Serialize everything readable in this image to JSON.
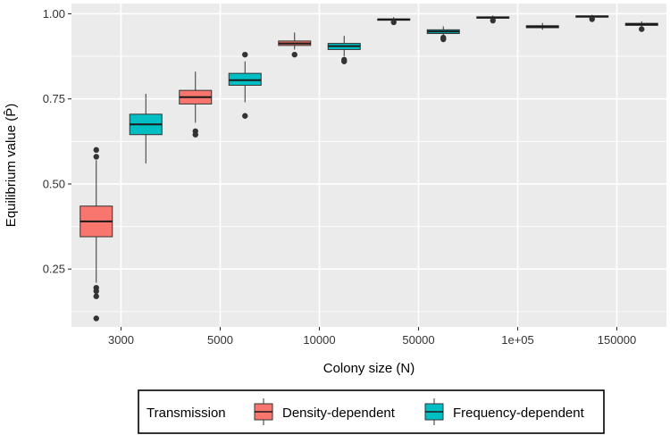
{
  "chart_data": {
    "type": "boxplot",
    "title": "",
    "xlabel": "Colony size (N)",
    "ylabel": "Equilibrium value (P̂)",
    "categories": [
      "3000",
      "5000",
      "10000",
      "50000",
      "1e+05",
      "150000"
    ],
    "ylim": [
      0.08,
      1.03
    ],
    "yticks": [
      0.25,
      0.5,
      0.75,
      1.0
    ],
    "ytick_labels": [
      "0.25",
      "0.50",
      "0.75",
      "1.00"
    ],
    "grid": true,
    "legend": {
      "title": "Transmission",
      "placement": "bottom"
    },
    "series": [
      {
        "name": "Density-dependent",
        "color": "#F8766D",
        "boxes": [
          {
            "min": 0.21,
            "q1": 0.345,
            "median": 0.39,
            "q3": 0.435,
            "max": 0.57,
            "outliers": [
              0.6,
              0.58,
              0.195,
              0.185,
              0.17,
              0.105
            ]
          },
          {
            "min": 0.68,
            "q1": 0.735,
            "median": 0.755,
            "q3": 0.775,
            "max": 0.83,
            "outliers": [
              0.655,
              0.645
            ]
          },
          {
            "min": 0.895,
            "q1": 0.907,
            "median": 0.913,
            "q3": 0.92,
            "max": 0.945,
            "outliers": [
              0.88
            ]
          },
          {
            "min": 0.975,
            "q1": 0.981,
            "median": 0.983,
            "q3": 0.985,
            "max": 0.99,
            "outliers": [
              0.975
            ]
          },
          {
            "min": 0.983,
            "q1": 0.987,
            "median": 0.989,
            "q3": 0.991,
            "max": 0.995,
            "outliers": [
              0.98
            ]
          },
          {
            "min": 0.986,
            "q1": 0.99,
            "median": 0.992,
            "q3": 0.994,
            "max": 0.997,
            "outliers": [
              0.984
            ]
          }
        ]
      },
      {
        "name": "Frequency-dependent",
        "color": "#00BFC4",
        "boxes": [
          {
            "min": 0.56,
            "q1": 0.645,
            "median": 0.675,
            "q3": 0.705,
            "max": 0.765,
            "outliers": []
          },
          {
            "min": 0.74,
            "q1": 0.79,
            "median": 0.805,
            "q3": 0.825,
            "max": 0.86,
            "outliers": [
              0.88,
              0.7
            ]
          },
          {
            "min": 0.875,
            "q1": 0.895,
            "median": 0.905,
            "q3": 0.913,
            "max": 0.935,
            "outliers": [
              0.865,
              0.86
            ]
          },
          {
            "min": 0.935,
            "q1": 0.942,
            "median": 0.948,
            "q3": 0.953,
            "max": 0.963,
            "outliers": [
              0.93,
              0.925
            ]
          },
          {
            "min": 0.953,
            "q1": 0.959,
            "median": 0.962,
            "q3": 0.965,
            "max": 0.973,
            "outliers": []
          },
          {
            "min": 0.96,
            "q1": 0.966,
            "median": 0.969,
            "q3": 0.972,
            "max": 0.978,
            "outliers": [
              0.955
            ]
          }
        ]
      }
    ]
  }
}
